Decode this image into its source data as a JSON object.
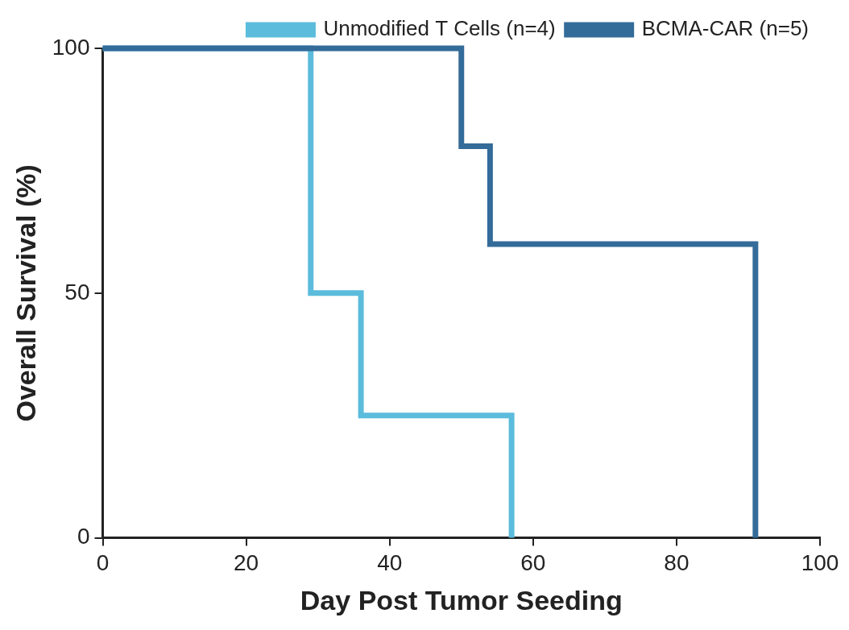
{
  "chart_data": {
    "type": "line",
    "x_label": "Day Post Tumor Seeding",
    "y_label": "Overall Survival (%)",
    "line_style": "steps",
    "grid": false,
    "legend": "top right",
    "xlim": [
      0,
      100
    ],
    "xticks": [
      0,
      20,
      40,
      60,
      80,
      100
    ],
    "ylim": [
      0,
      100
    ],
    "yticks": [
      0,
      50,
      100
    ],
    "series": [
      {
        "name": "Unmodified T Cells (n=4)",
        "color": "#5bbcdc",
        "x": [
          0,
          29,
          36,
          57
        ],
        "values": [
          100,
          50,
          25,
          0
        ]
      },
      {
        "name": "BCMA-CAR (n=5)",
        "color": "#336b99",
        "x": [
          0,
          50,
          54,
          91
        ],
        "values": [
          100,
          80,
          60,
          0
        ]
      }
    ]
  }
}
